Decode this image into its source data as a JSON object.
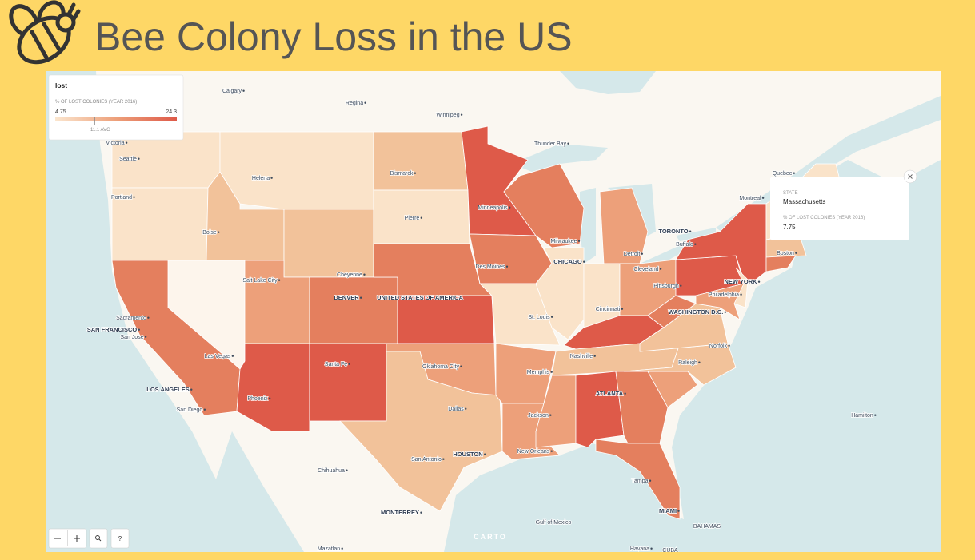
{
  "header": {
    "title": "Bee Colony Loss in the US"
  },
  "legend": {
    "title": "lost",
    "subtitle": "% OF LOST COLONIES (YEAR 2016)",
    "min": 4.75,
    "max": 24.3,
    "avg": {
      "value": 11.1,
      "label": "11.1 AVG"
    }
  },
  "tooltip": {
    "state_label": "STATE",
    "state": "Massachusetts",
    "value_label": "% OF LOST COLONIES (YEAR 2016)",
    "value": 7.75
  },
  "cities": [
    "Calgary",
    "Regina",
    "Winnipeg",
    "Thunder Bay",
    "Victoria",
    "Seattle",
    "Portland",
    "Helena",
    "Bismarck",
    "Boise",
    "Pierre",
    "Minneapolis",
    "Quebec",
    "Montreal",
    "TORONTO",
    "Buffalo",
    "Milwaukee",
    "CHICAGO",
    "Detroit",
    "Boston",
    "Des Moines",
    "Cleveland",
    "Cheyenne",
    "Salt Lake City",
    "Pittsburgh",
    "NEW YORK",
    "DENVER",
    "UNITED STATES OF AMERICA",
    "Sacramento",
    "Philadelphia",
    "SAN FRANCISCO",
    "San Jose",
    "St. Louis",
    "Cincinnati",
    "WASHINGTON D.C.",
    "Norfolk",
    "Las Vegas",
    "Nashville",
    "Santa Fe",
    "Oklahoma City",
    "Raleigh",
    "Memphis",
    "LOS ANGELES",
    "ATLANTA",
    "Phoenix",
    "San Diego",
    "Dallas",
    "Jackson",
    "Hamilton",
    "New Orleans",
    "HOUSTON",
    "San Antonio",
    "Chihuahua",
    "Tampa",
    "MIAMI",
    "MONTERREY",
    "BAHAMAS",
    "Gulf of Mexico",
    "Mazatlan",
    "Havana",
    "CUBA"
  ],
  "controls": {
    "help": "?",
    "attribution": "CARTO"
  }
}
